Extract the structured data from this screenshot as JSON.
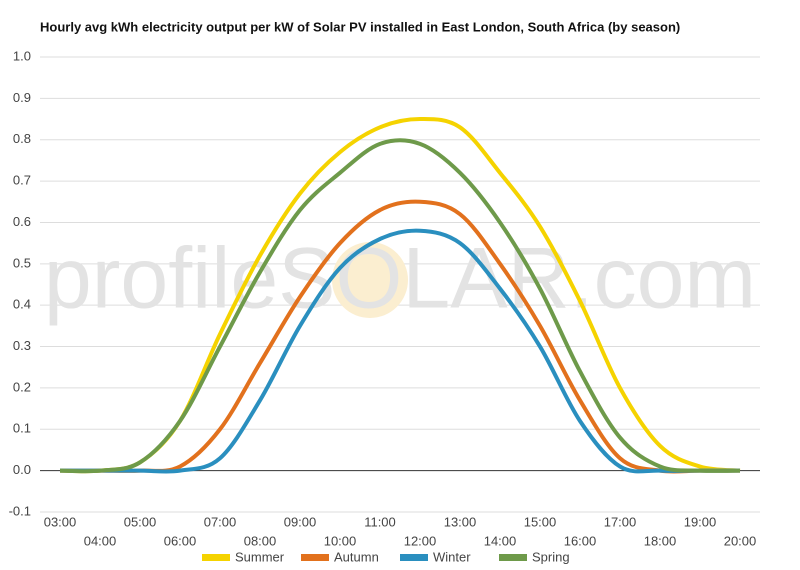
{
  "chart_data": {
    "type": "line",
    "title": "Hourly avg kWh electricity output per kW of Solar PV installed in East London, South Africa (by season)",
    "watermark": "profileSOLAR.com",
    "categories": [
      "03:00",
      "04:00",
      "05:00",
      "06:00",
      "07:00",
      "08:00",
      "09:00",
      "10:00",
      "11:00",
      "12:00",
      "13:00",
      "14:00",
      "15:00",
      "16:00",
      "17:00",
      "18:00",
      "19:00",
      "20:00"
    ],
    "series": [
      {
        "name": "Summer",
        "color": "#f5d300",
        "values": [
          0,
          0,
          0.02,
          0.12,
          0.33,
          0.52,
          0.67,
          0.77,
          0.83,
          0.85,
          0.83,
          0.72,
          0.59,
          0.41,
          0.2,
          0.06,
          0.01,
          0
        ]
      },
      {
        "name": "Autumn",
        "color": "#e2711d",
        "values": [
          0,
          0,
          0,
          0.01,
          0.1,
          0.26,
          0.42,
          0.55,
          0.63,
          0.65,
          0.62,
          0.5,
          0.35,
          0.17,
          0.03,
          0,
          0,
          0
        ]
      },
      {
        "name": "Winter",
        "color": "#2a8fbf",
        "values": [
          0,
          0,
          0,
          0,
          0.03,
          0.17,
          0.35,
          0.49,
          0.56,
          0.58,
          0.55,
          0.44,
          0.3,
          0.12,
          0.01,
          0,
          0,
          0
        ]
      },
      {
        "name": "Spring",
        "color": "#6e9a4a",
        "values": [
          0,
          0,
          0.02,
          0.12,
          0.3,
          0.48,
          0.63,
          0.72,
          0.79,
          0.79,
          0.72,
          0.6,
          0.44,
          0.24,
          0.08,
          0.01,
          0,
          0
        ]
      }
    ],
    "ylim": [
      -0.1,
      1.0
    ],
    "yticks": [
      -0.1,
      {
        "value": 0,
        "label": "0.0"
      },
      0.1,
      0.2,
      0.3,
      0.4,
      0.5,
      0.6,
      0.7,
      0.8,
      0.9,
      {
        "value": 1,
        "label": "1.0"
      }
    ],
    "grid": true,
    "legend": "bottom"
  }
}
